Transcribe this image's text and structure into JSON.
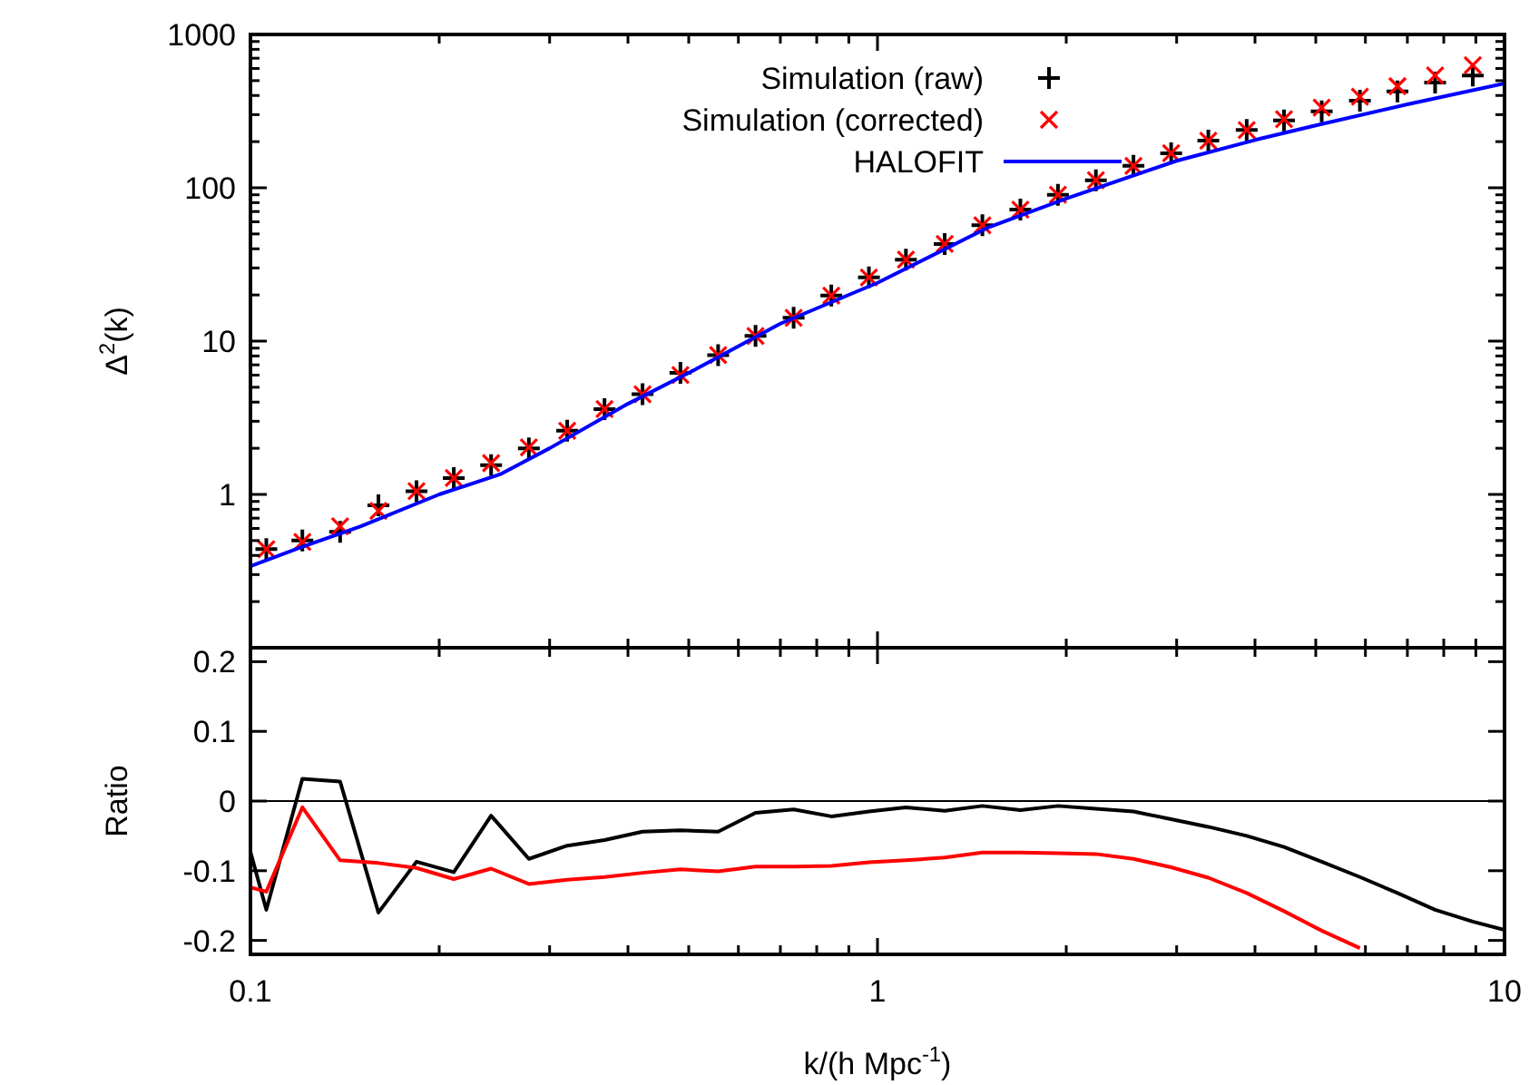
{
  "chart_data": [
    {
      "type": "scatter",
      "ylabel": "Δ$^{2}$(k)",
      "log": "xy",
      "legend": "top",
      "tick_labels": "y",
      "grid": false,
      "xlim": [
        0.1,
        10
      ],
      "xticks": [
        {
          "value": 0.1,
          "label": null
        },
        {
          "value": 0.2,
          "label": null
        },
        {
          "value": 0.3,
          "label": null
        },
        {
          "value": 0.4,
          "label": null
        },
        {
          "value": 0.5,
          "label": null
        },
        {
          "value": 0.6,
          "label": null
        },
        {
          "value": 0.7,
          "label": null
        },
        {
          "value": 0.8,
          "label": null
        },
        {
          "value": 0.9,
          "label": null
        },
        {
          "value": 1,
          "label": null
        },
        {
          "value": 2,
          "label": null
        },
        {
          "value": 3,
          "label": null
        },
        {
          "value": 4,
          "label": null
        },
        {
          "value": 5,
          "label": null
        },
        {
          "value": 6,
          "label": null
        },
        {
          "value": 7,
          "label": null
        },
        {
          "value": 8,
          "label": null
        },
        {
          "value": 9,
          "label": null
        },
        {
          "value": 10,
          "label": null
        }
      ],
      "ylim": [
        0.1,
        1000
      ],
      "yticks": [
        {
          "value": 0.2,
          "label": null
        },
        {
          "value": 0.3,
          "label": null
        },
        {
          "value": 0.4,
          "label": null
        },
        {
          "value": 0.5,
          "label": null
        },
        {
          "value": 0.6,
          "label": null
        },
        {
          "value": 0.7,
          "label": null
        },
        {
          "value": 0.8,
          "label": null
        },
        {
          "value": 0.9,
          "label": null
        },
        1,
        {
          "value": 2,
          "label": null
        },
        {
          "value": 3,
          "label": null
        },
        {
          "value": 4,
          "label": null
        },
        {
          "value": 5,
          "label": null
        },
        {
          "value": 6,
          "label": null
        },
        {
          "value": 7,
          "label": null
        },
        {
          "value": 8,
          "label": null
        },
        {
          "value": 9,
          "label": null
        },
        10,
        {
          "value": 20,
          "label": null
        },
        {
          "value": 30,
          "label": null
        },
        {
          "value": 40,
          "label": null
        },
        {
          "value": 50,
          "label": null
        },
        {
          "value": 60,
          "label": null
        },
        {
          "value": 70,
          "label": null
        },
        {
          "value": 80,
          "label": null
        },
        {
          "value": 90,
          "label": null
        },
        100,
        {
          "value": 200,
          "label": null
        },
        {
          "value": 300,
          "label": null
        },
        {
          "value": 400,
          "label": null
        },
        {
          "value": 500,
          "label": null
        },
        {
          "value": 600,
          "label": null
        },
        {
          "value": 700,
          "label": null
        },
        {
          "value": 800,
          "label": null
        },
        {
          "value": 900,
          "label": null
        },
        1000
      ],
      "x": [
        0.106,
        0.121,
        0.139,
        0.16,
        0.184,
        0.211,
        0.242,
        0.278,
        0.32,
        0.367,
        0.422,
        0.485,
        0.557,
        0.639,
        0.735,
        0.844,
        0.969,
        1.11,
        1.28,
        1.47,
        1.69,
        1.94,
        2.23,
        2.56,
        2.94,
        3.37,
        3.88,
        4.45,
        5.11,
        5.88,
        6.75,
        7.75,
        8.9
      ],
      "series": [
        {
          "name": "Simulation (raw)",
          "marker": "cross",
          "color": "#000000",
          "values": [
            0.44,
            0.5,
            0.57,
            0.85,
            1.05,
            1.28,
            1.55,
            2.0,
            2.6,
            3.6,
            4.5,
            6.2,
            8.1,
            10.8,
            14.2,
            19.8,
            26,
            34,
            43,
            57,
            72,
            90,
            112,
            139,
            168,
            203,
            238,
            275,
            315,
            370,
            425,
            485,
            540
          ]
        },
        {
          "name": "Simulation (corrected)",
          "marker": "x",
          "color": "#ff0000",
          "values": [
            0.44,
            0.49,
            0.62,
            0.78,
            1.05,
            1.28,
            1.6,
            2.03,
            2.6,
            3.6,
            4.5,
            6.0,
            8.1,
            10.8,
            14.2,
            19.8,
            26,
            34,
            43,
            57,
            72,
            90,
            112,
            139,
            168,
            203,
            238,
            280,
            333,
            392,
            460,
            540,
            630
          ]
        },
        {
          "name": "HALOFIT",
          "type": "line",
          "marker": "none",
          "color": "#0000ff",
          "x": [
            0.1,
            0.12,
            0.15,
            0.2,
            0.25,
            0.3,
            0.4,
            0.5,
            0.7,
            1,
            1.5,
            2,
            3,
            4,
            5,
            7,
            10
          ],
          "values": [
            0.34,
            0.45,
            0.62,
            1.0,
            1.35,
            2.0,
            3.9,
            6.2,
            13,
            24,
            55,
            85,
            150,
            205,
            255,
            350,
            480
          ]
        }
      ]
    },
    {
      "type": "line",
      "xlabel": "k/(h Mpc$^{-1}$)",
      "ylabel": "Ratio",
      "log": "x",
      "grid": false,
      "legend": false,
      "marker": "none",
      "xlim": [
        0.1,
        10
      ],
      "xticks": [
        0.1,
        {
          "value": 0.2,
          "label": null
        },
        {
          "value": 0.3,
          "label": null
        },
        {
          "value": 0.4,
          "label": null
        },
        {
          "value": 0.5,
          "label": null
        },
        {
          "value": 0.6,
          "label": null
        },
        {
          "value": 0.7,
          "label": null
        },
        {
          "value": 0.8,
          "label": null
        },
        {
          "value": 0.9,
          "label": null
        },
        1,
        {
          "value": 2,
          "label": null
        },
        {
          "value": 3,
          "label": null
        },
        {
          "value": 4,
          "label": null
        },
        {
          "value": 5,
          "label": null
        },
        {
          "value": 6,
          "label": null
        },
        {
          "value": 7,
          "label": null
        },
        {
          "value": 8,
          "label": null
        },
        {
          "value": 9,
          "label": null
        },
        10
      ],
      "ylim": [
        -0.22,
        0.22
      ],
      "yticks": [
        0.2,
        0.1,
        0,
        -0.1,
        -0.2
      ],
      "ref_lines": [
        {
          "axis": "y",
          "value": 0,
          "color": "#000000"
        }
      ],
      "series": [
        {
          "color": "#000000",
          "x": [
            0.1,
            0.106,
            0.121,
            0.139,
            0.16,
            0.184,
            0.211,
            0.242,
            0.278,
            0.32,
            0.367,
            0.422,
            0.485,
            0.557,
            0.639,
            0.735,
            0.844,
            0.969,
            1.11,
            1.28,
            1.47,
            1.69,
            1.94,
            2.23,
            2.56,
            2.94,
            3.37,
            3.88,
            4.45,
            5.11,
            5.88,
            6.75,
            7.75,
            8.9,
            10
          ],
          "values": [
            -0.073,
            -0.156,
            0.032,
            0.028,
            -0.16,
            -0.087,
            -0.102,
            -0.021,
            -0.083,
            -0.064,
            -0.056,
            -0.044,
            -0.042,
            -0.044,
            -0.017,
            -0.012,
            -0.022,
            -0.015,
            -0.009,
            -0.014,
            -0.007,
            -0.013,
            -0.007,
            -0.011,
            -0.015,
            -0.026,
            -0.037,
            -0.05,
            -0.066,
            -0.087,
            -0.109,
            -0.132,
            -0.156,
            -0.173,
            -0.185
          ]
        },
        {
          "color": "#ff0000",
          "x": [
            0.1,
            0.106,
            0.121,
            0.139,
            0.16,
            0.184,
            0.211,
            0.242,
            0.278,
            0.32,
            0.367,
            0.422,
            0.485,
            0.557,
            0.639,
            0.735,
            0.844,
            0.969,
            1.11,
            1.28,
            1.47,
            1.69,
            1.94,
            2.23,
            2.56,
            2.94,
            3.37,
            3.88,
            4.45,
            5.11,
            5.88
          ],
          "values": [
            -0.124,
            -0.13,
            -0.009,
            -0.085,
            -0.089,
            -0.096,
            -0.112,
            -0.097,
            -0.119,
            -0.113,
            -0.109,
            -0.103,
            -0.098,
            -0.101,
            -0.094,
            -0.094,
            -0.093,
            -0.088,
            -0.085,
            -0.081,
            -0.074,
            -0.074,
            -0.075,
            -0.076,
            -0.083,
            -0.095,
            -0.11,
            -0.132,
            -0.158,
            -0.186,
            -0.211
          ]
        }
      ]
    }
  ]
}
